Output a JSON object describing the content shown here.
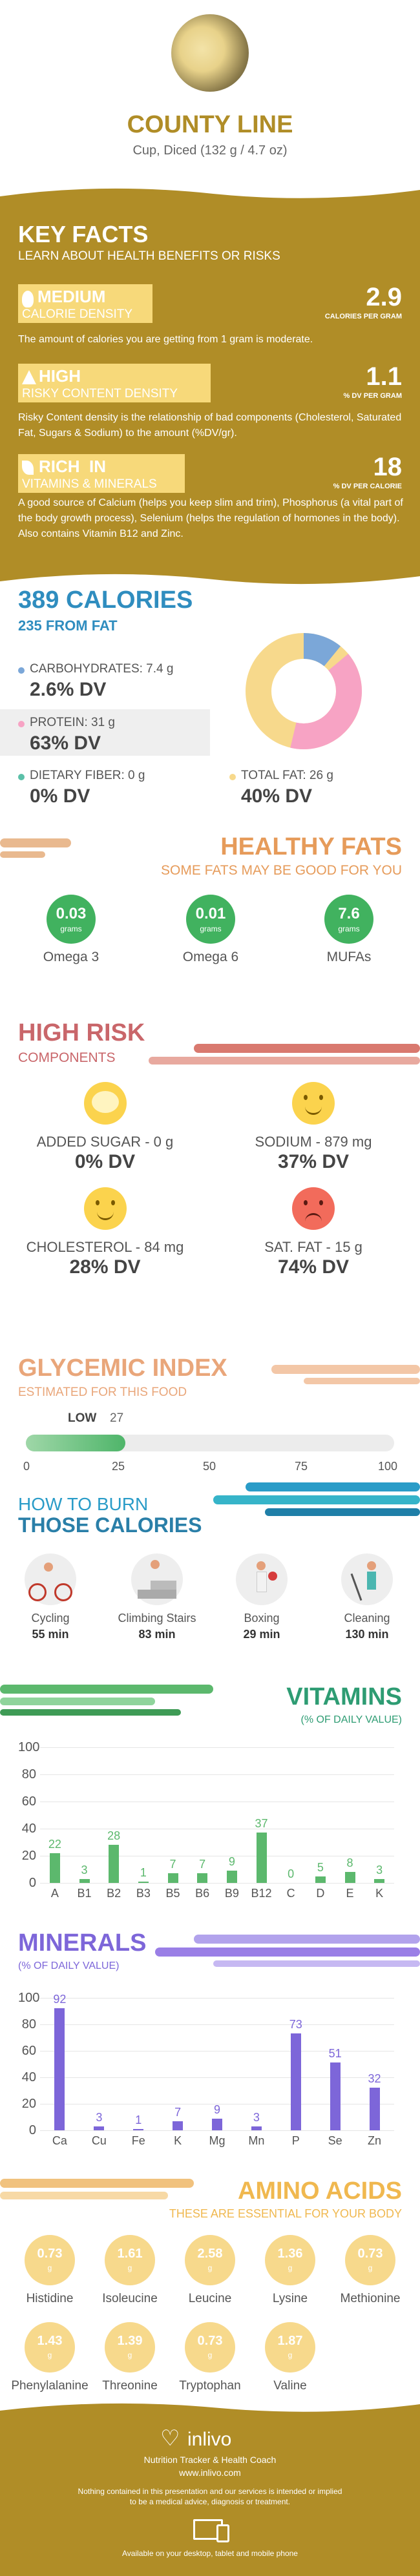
{
  "header": {
    "title": "COUNTY LINE",
    "subtitle": "Cup, Diced (132 g / 4.7 oz)"
  },
  "key_facts": {
    "title": "KEY FACTS",
    "subtitle": "LEARN ABOUT HEALTH BENEFITS OR RISKS",
    "items": [
      {
        "level": "MEDIUM",
        "label": "CALORIE DENSITY",
        "value": "2.9",
        "unit": "CALORIES PER GRAM",
        "desc": "The amount of calories you are getting from 1 gram is moderate."
      },
      {
        "level": "HIGH",
        "label": "RISKY CONTENT DENSITY",
        "value": "1.1",
        "unit": "% DV PER GRAM",
        "desc": "Risky Content density is the relationship of bad components (Cholesterol, Saturated Fat, Sugars & Sodium) to the amount (%DV/gr)."
      },
      {
        "level": "RICH  IN",
        "label": "VITAMINS & MINERALS",
        "value": "18",
        "unit": "% DV PER CALORIE",
        "desc": "A good source of Calcium (helps you keep slim and trim), Phosphorus (a vital part of the body growth process), Selenium (helps the regulation of hormones in the body). Also contains Vitamin B12 and Zinc."
      }
    ]
  },
  "calories": {
    "title": "389 CALORIES",
    "subtitle": "235 FROM FAT",
    "carbs_label": "CARBOHYDRATES: 7.4 g",
    "carbs_dv": "2.6% DV",
    "protein_label": "PROTEIN: 31 g",
    "protein_dv": "63% DV",
    "fiber_label": "DIETARY FIBER: 0 g",
    "fiber_dv": "0% DV",
    "fat_label": "TOTAL FAT: 26 g",
    "fat_dv": "40% DV",
    "colors": {
      "carbs": "#7ba7d8",
      "protein": "#f7a3c4",
      "fiber": "#5bc0a8",
      "fat": "#f7d98c"
    }
  },
  "healthy_fats": {
    "title": "HEALTHY FATS",
    "subtitle": "SOME FATS MAY BE GOOD FOR YOU",
    "items": [
      {
        "value": "0.03",
        "unit": "grams",
        "name": "Omega 3"
      },
      {
        "value": "0.01",
        "unit": "grams",
        "name": "Omega 6"
      },
      {
        "value": "7.6",
        "unit": "grams",
        "name": "MUFAs"
      }
    ]
  },
  "high_risk": {
    "title": "HIGH RISK",
    "subtitle": "COMPONENTS",
    "items": [
      {
        "label": "ADDED SUGAR - 0 g",
        "dv": "0% DV",
        "face": "happy"
      },
      {
        "label": "SODIUM - 879 mg",
        "dv": "37% DV",
        "face": "smile"
      },
      {
        "label": "CHOLESTEROL - 84 mg",
        "dv": "28% DV",
        "face": "smile"
      },
      {
        "label": "SAT. FAT - 15 g",
        "dv": "74% DV",
        "face": "sad"
      }
    ]
  },
  "glycemic": {
    "title": "GLYCEMIC INDEX",
    "subtitle": "ESTIMATED FOR THIS FOOD",
    "level": "LOW",
    "value": "27",
    "fill": 0.27,
    "ticks": [
      "0",
      "25",
      "50",
      "75",
      "100"
    ]
  },
  "burn": {
    "title_1": "HOW TO BURN",
    "title_2": "THOSE CALORIES",
    "items": [
      {
        "name": "Cycling",
        "time": "55 min",
        "icon": "cycling-icon"
      },
      {
        "name": "Climbing Stairs",
        "time": "83 min",
        "icon": "stairs-icon"
      },
      {
        "name": "Boxing",
        "time": "29 min",
        "icon": "boxing-icon"
      },
      {
        "name": "Cleaning",
        "time": "130 min",
        "icon": "cleaning-icon"
      }
    ]
  },
  "vitamins": {
    "title": "VITAMINS",
    "subtitle": "(% OF DAILY VALUE)"
  },
  "minerals": {
    "title": "MINERALS",
    "subtitle": "(% OF DAILY VALUE)"
  },
  "chart_data": [
    {
      "type": "bar",
      "title": "VITAMINS",
      "subtitle": "(% OF DAILY VALUE)",
      "categories": [
        "A",
        "B1",
        "B2",
        "B3",
        "B5",
        "B6",
        "B9",
        "B12",
        "C",
        "D",
        "E",
        "K"
      ],
      "values": [
        22,
        3,
        28,
        1,
        7,
        7,
        9,
        37,
        0,
        5,
        8,
        3
      ],
      "ylim": [
        0,
        100
      ],
      "yticks": [
        0,
        20,
        40,
        60,
        80,
        100
      ],
      "color": "#5cb86d"
    },
    {
      "type": "bar",
      "title": "MINERALS",
      "subtitle": "(% OF DAILY VALUE)",
      "categories": [
        "Ca",
        "Cu",
        "Fe",
        "K",
        "Mg",
        "Mn",
        "P",
        "Se",
        "Zn"
      ],
      "values": [
        92,
        3,
        1,
        7,
        9,
        3,
        73,
        51,
        32
      ],
      "ylim": [
        0,
        100
      ],
      "yticks": [
        0,
        20,
        40,
        60,
        80,
        100
      ],
      "color": "#7d66d9"
    }
  ],
  "amino": {
    "title": "AMINO ACIDS",
    "subtitle": "THESE ARE ESSENTIAL FOR YOUR BODY",
    "unit": "g",
    "items": [
      {
        "value": "0.73",
        "name": "Histidine"
      },
      {
        "value": "1.61",
        "name": "Isoleucine"
      },
      {
        "value": "2.58",
        "name": "Leucine"
      },
      {
        "value": "1.36",
        "name": "Lysine"
      },
      {
        "value": "0.73",
        "name": "Methionine"
      },
      {
        "value": "1.43",
        "name": "Phenylalanine"
      },
      {
        "value": "1.39",
        "name": "Threonine"
      },
      {
        "value": "0.73",
        "name": "Tryptophan"
      },
      {
        "value": "1.87",
        "name": "Valine"
      }
    ]
  },
  "footer": {
    "brand": "inlivo",
    "tagline": "Nutrition Tracker & Health Coach",
    "url": "www.inlivo.com",
    "disclaimer_1": "Nothing contained in this presentation and our services is intended or implied",
    "disclaimer_2": "to be a medical advice, diagnosis or treatment.",
    "available": "Available on your desktop, tablet and mobile phone"
  }
}
